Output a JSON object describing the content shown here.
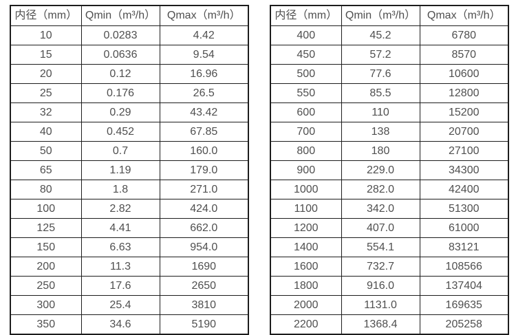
{
  "colors": {
    "background": "#ffffff",
    "border": "#1c1c1c",
    "text": "#4f4f4f"
  },
  "chart_data": [
    {
      "type": "table",
      "name": "flow-rate-table-small-diameters",
      "columns": [
        "内径（mm）",
        "Qmin（m³/h）",
        "Qmax（m³/h）"
      ],
      "rows": [
        [
          "10",
          "0.0283",
          "4.42"
        ],
        [
          "15",
          "0.0636",
          "9.54"
        ],
        [
          "20",
          "0.12",
          "16.96"
        ],
        [
          "25",
          "0.176",
          "26.5"
        ],
        [
          "32",
          "0.29",
          "43.42"
        ],
        [
          "40",
          "0.452",
          "67.85"
        ],
        [
          "50",
          "0.7",
          "160.0"
        ],
        [
          "65",
          "1.19",
          "179.0"
        ],
        [
          "80",
          "1.8",
          "271.0"
        ],
        [
          "100",
          "2.82",
          "424.0"
        ],
        [
          "125",
          "4.41",
          "662.0"
        ],
        [
          "150",
          "6.63",
          "954.0"
        ],
        [
          "200",
          "11.3",
          "1690"
        ],
        [
          "250",
          "17.6",
          "2650"
        ],
        [
          "300",
          "25.4",
          "3810"
        ],
        [
          "350",
          "34.6",
          "5190"
        ]
      ]
    },
    {
      "type": "table",
      "name": "flow-rate-table-large-diameters",
      "columns": [
        "内径（mm）",
        "Qmin（m³/h）",
        "Qmax（m³/h）"
      ],
      "rows": [
        [
          "400",
          "45.2",
          "6780"
        ],
        [
          "450",
          "57.2",
          "8570"
        ],
        [
          "500",
          "77.6",
          "10600"
        ],
        [
          "550",
          "85.5",
          "12800"
        ],
        [
          "600",
          "110",
          "15200"
        ],
        [
          "700",
          "138",
          "20700"
        ],
        [
          "800",
          "180",
          "27100"
        ],
        [
          "900",
          "229.0",
          "34300"
        ],
        [
          "1000",
          "282.0",
          "42400"
        ],
        [
          "1100",
          "342.0",
          "51300"
        ],
        [
          "1200",
          "407.0",
          "61000"
        ],
        [
          "1400",
          "554.1",
          "83121"
        ],
        [
          "1600",
          "732.7",
          "108566"
        ],
        [
          "1800",
          "916.0",
          "137404"
        ],
        [
          "2000",
          "1131.0",
          "169635"
        ],
        [
          "2200",
          "1368.4",
          "205258"
        ]
      ]
    }
  ]
}
